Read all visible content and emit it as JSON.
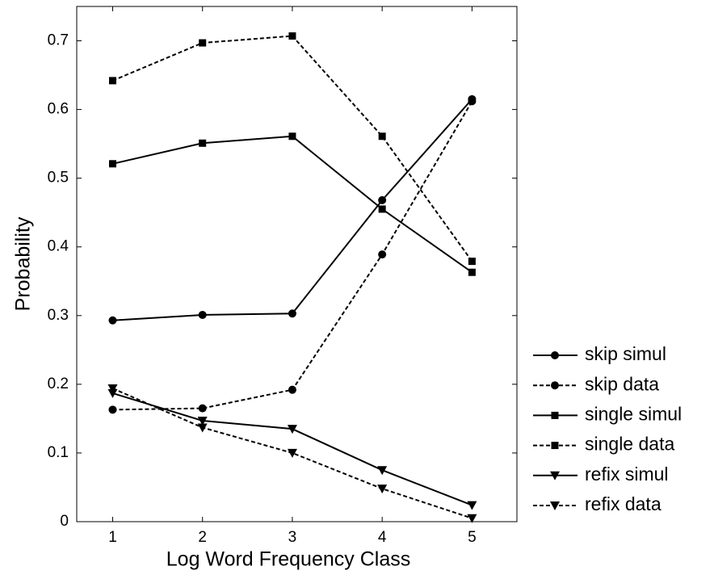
{
  "chart_data": {
    "type": "line",
    "x_label": "Log Word Frequency Class",
    "y_label": "Probability",
    "x": [
      1,
      2,
      3,
      4,
      5
    ],
    "xlim": [
      0.6,
      5.5
    ],
    "xticks": [
      1,
      2,
      3,
      4,
      5
    ],
    "ylim": [
      0,
      0.75
    ],
    "yticks": [
      0,
      0.1,
      0.2,
      0.3,
      0.4,
      0.5,
      0.6,
      0.7
    ],
    "legend": "outside-right",
    "series": [
      {
        "name": "skip simul",
        "color": "#000000",
        "marker": "circle",
        "dash": "solid",
        "values": [
          0.293,
          0.301,
          0.303,
          0.468,
          0.615
        ]
      },
      {
        "name": "skip data",
        "color": "#000000",
        "marker": "circle",
        "dash": "dashed",
        "values": [
          0.163,
          0.165,
          0.192,
          0.389,
          0.612
        ]
      },
      {
        "name": "single simul",
        "color": "#000000",
        "marker": "square",
        "dash": "solid",
        "values": [
          0.521,
          0.551,
          0.561,
          0.455,
          0.363
        ]
      },
      {
        "name": "single data",
        "color": "#000000",
        "marker": "square",
        "dash": "dashed",
        "values": [
          0.642,
          0.697,
          0.707,
          0.561,
          0.379
        ]
      },
      {
        "name": "refix simul",
        "color": "#000000",
        "marker": "triangle-down",
        "dash": "solid",
        "values": [
          0.187,
          0.147,
          0.135,
          0.075,
          0.024
        ]
      },
      {
        "name": "refix data",
        "color": "#000000",
        "marker": "triangle-down",
        "dash": "dashed",
        "values": [
          0.194,
          0.137,
          0.1,
          0.048,
          0.005
        ]
      }
    ]
  }
}
